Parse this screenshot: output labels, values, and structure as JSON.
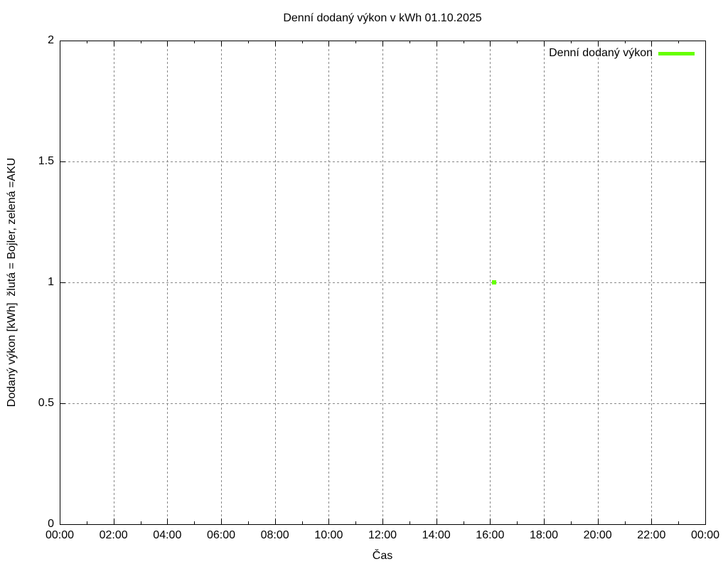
{
  "chart_data": {
    "type": "scatter",
    "title": "Denní dodaný výkon v kWh 01.10.2025",
    "xlabel": "Čas",
    "ylabel": "Dodaný výkon [kWh]  žlutá = Bojler, zelená =AKU",
    "x_axis": {
      "unit": "time-of-day (HH:MM)",
      "range_hours": [
        0,
        24
      ],
      "major_tick_step_hours": 2,
      "minor_tick_step_hours": 1,
      "tick_values_hours": [
        0,
        2,
        4,
        6,
        8,
        10,
        12,
        14,
        16,
        18,
        20,
        22,
        24
      ],
      "tick_labels": [
        "00:00",
        "02:00",
        "04:00",
        "06:00",
        "08:00",
        "10:00",
        "12:00",
        "14:00",
        "16:00",
        "18:00",
        "20:00",
        "22:00",
        "00:00"
      ]
    },
    "y_axis": {
      "range": [
        0,
        2
      ],
      "major_tick_step": 0.5,
      "tick_values": [
        0,
        0.5,
        1,
        1.5,
        2
      ],
      "tick_labels": [
        "0",
        "0.5",
        "1",
        "1.5",
        "2"
      ]
    },
    "grid": {
      "enabled": true,
      "line_style": "dashed",
      "color": "#888888"
    },
    "legend": {
      "position": "top-right-inside",
      "entries": [
        {
          "label": "Denní dodaný výkon",
          "color": "#66ff00",
          "sample": "line"
        }
      ]
    },
    "series": [
      {
        "name": "Denní dodaný výkon",
        "color": "#66ff00",
        "style": "points",
        "marker": "square",
        "points": [
          {
            "x_hours": 16.15,
            "x_time_approx": "16:09",
            "y": 1.0
          }
        ]
      }
    ],
    "colors": {
      "background": "#ffffff",
      "axis": "#000000",
      "text": "#000000"
    }
  }
}
